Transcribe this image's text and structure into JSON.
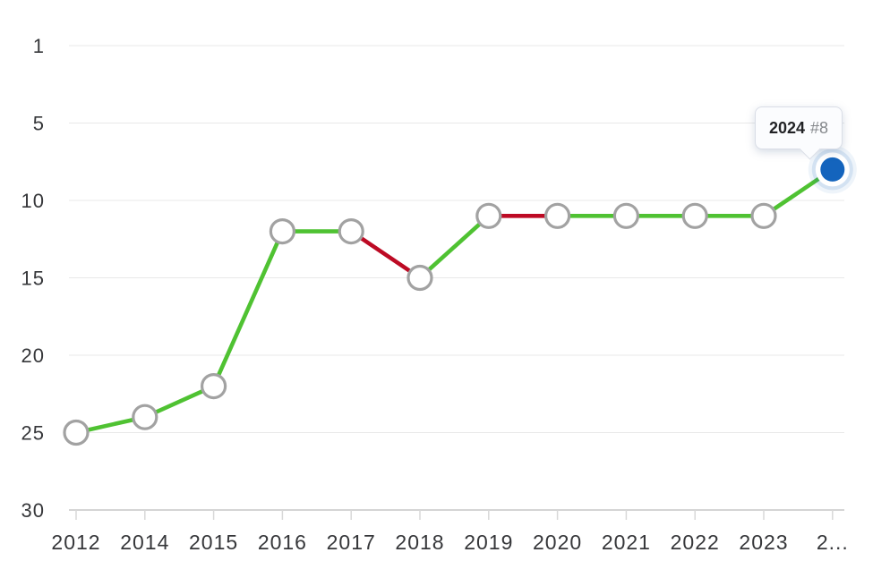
{
  "chart_data": {
    "type": "line",
    "title": "",
    "years": [
      "2012",
      "2014",
      "2015",
      "2016",
      "2017",
      "2018",
      "2019",
      "2020",
      "2021",
      "2022",
      "2023",
      "2024"
    ],
    "x_tick_labels": [
      "2012",
      "2014",
      "2015",
      "2016",
      "2017",
      "2018",
      "2019",
      "2020",
      "2021",
      "2022",
      "2023",
      "2..."
    ],
    "values": [
      25,
      24,
      22,
      12,
      12,
      15,
      11,
      11,
      11,
      11,
      11,
      8
    ],
    "segment_directions": [
      "up",
      "up",
      "up",
      "flat",
      "down",
      "up",
      "down",
      "flat",
      "flat",
      "flat",
      "up"
    ],
    "segment_colors": [
      "green",
      "green",
      "green",
      "green",
      "red",
      "green",
      "red",
      "green",
      "green",
      "green",
      "green"
    ],
    "y_ticks": [
      1,
      5,
      10,
      15,
      20,
      25,
      30
    ],
    "y_axis": {
      "inverted": true,
      "range_top": 1,
      "range_bottom": 30
    },
    "grid": true,
    "legend": false,
    "tooltip": {
      "year": "2024",
      "value_label": "#8"
    },
    "colors": {
      "improve_green": "#4fc232",
      "decline_red": "#bd0a24",
      "current_blue": "#1464bd",
      "marker_border": "#a2a2a2",
      "marker_fill": "#ffffff",
      "gridline": "#e8e8e8",
      "axis_line": "#c6c6c6",
      "tick_mark": "#d8d8d8",
      "label_text": "#36373a",
      "tooltip_bg": "#fbfcfe",
      "tooltip_year_text": "#222326",
      "tooltip_rank_text": "#85888c"
    }
  }
}
